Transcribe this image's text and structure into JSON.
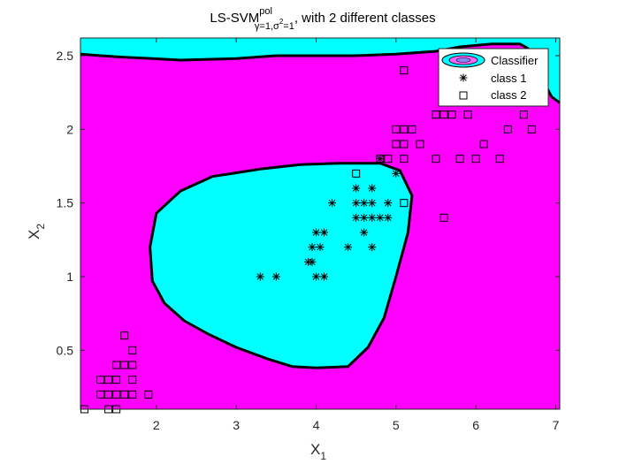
{
  "chart_data": {
    "type": "scatter",
    "title": {
      "main": "LS-SVM",
      "sup": "pol",
      "sub_prefix": "γ=1,σ",
      "sub_sup": "2",
      "sub_suffix": "=1",
      "tail": ", with 2 different classes"
    },
    "xlabel": {
      "base": "X",
      "sub": "1"
    },
    "ylabel": {
      "base": "X",
      "sub": "2"
    },
    "xlim": [
      1.05,
      7.05
    ],
    "ylim": [
      0.1,
      2.62
    ],
    "xticks": [
      2,
      3,
      4,
      5,
      6,
      7
    ],
    "yticks": [
      0.5,
      1,
      1.5,
      2,
      2.5
    ],
    "grid": false,
    "legend_position": "top-right",
    "legend": [
      "Classifier",
      "class 1",
      "class 2"
    ],
    "colors": {
      "class_a_region": "#ff00ff",
      "class_b_region": "#00ffff",
      "boundary": "#000000",
      "marker": "#000000"
    },
    "decision_regions": {
      "center_island": [
        [
          4.0,
          0.38
        ],
        [
          4.4,
          0.39
        ],
        [
          4.65,
          0.52
        ],
        [
          4.85,
          0.72
        ],
        [
          5.0,
          1.0
        ],
        [
          5.15,
          1.3
        ],
        [
          5.2,
          1.55
        ],
        [
          5.05,
          1.72
        ],
        [
          4.8,
          1.77
        ],
        [
          4.3,
          1.77
        ],
        [
          3.8,
          1.76
        ],
        [
          3.3,
          1.73
        ],
        [
          2.7,
          1.68
        ],
        [
          2.3,
          1.58
        ],
        [
          2.0,
          1.43
        ],
        [
          1.92,
          1.2
        ],
        [
          1.95,
          0.97
        ],
        [
          2.1,
          0.82
        ],
        [
          2.35,
          0.7
        ],
        [
          2.65,
          0.61
        ],
        [
          3.0,
          0.52
        ],
        [
          3.4,
          0.44
        ],
        [
          3.7,
          0.39
        ]
      ],
      "top_band": [
        [
          1.05,
          2.62
        ],
        [
          7.05,
          2.62
        ],
        [
          7.05,
          2.18
        ],
        [
          6.95,
          2.22
        ],
        [
          6.85,
          2.32
        ],
        [
          6.75,
          2.45
        ],
        [
          6.65,
          2.55
        ],
        [
          6.55,
          2.58
        ],
        [
          6.2,
          2.58
        ],
        [
          5.8,
          2.56
        ],
        [
          5.5,
          2.53
        ],
        [
          5.0,
          2.51
        ],
        [
          4.5,
          2.5
        ],
        [
          4.0,
          2.5
        ],
        [
          3.5,
          2.5
        ],
        [
          3.0,
          2.48
        ],
        [
          2.3,
          2.47
        ],
        [
          1.95,
          2.48
        ],
        [
          1.6,
          2.49
        ],
        [
          1.3,
          2.5
        ],
        [
          1.05,
          2.51
        ]
      ]
    },
    "series": [
      {
        "name": "class 1",
        "marker": "asterisk",
        "points": [
          [
            3.3,
            1.0
          ],
          [
            3.5,
            1.0
          ],
          [
            3.9,
            1.1
          ],
          [
            3.95,
            1.1
          ],
          [
            3.95,
            1.2
          ],
          [
            4.05,
            1.2
          ],
          [
            4.0,
            1.0
          ],
          [
            4.1,
            1.0
          ],
          [
            4.0,
            1.3
          ],
          [
            4.1,
            1.3
          ],
          [
            4.2,
            1.5
          ],
          [
            4.4,
            1.2
          ],
          [
            4.5,
            1.4
          ],
          [
            4.5,
            1.5
          ],
          [
            4.5,
            1.6
          ],
          [
            4.6,
            1.3
          ],
          [
            4.6,
            1.4
          ],
          [
            4.6,
            1.5
          ],
          [
            4.7,
            1.2
          ],
          [
            4.7,
            1.4
          ],
          [
            4.7,
            1.5
          ],
          [
            4.7,
            1.6
          ],
          [
            4.8,
            1.4
          ],
          [
            4.8,
            1.8
          ],
          [
            4.9,
            1.4
          ],
          [
            4.9,
            1.5
          ],
          [
            5.0,
            1.7
          ]
        ]
      },
      {
        "name": "class 2",
        "marker": "square",
        "points": [
          [
            1.1,
            0.1
          ],
          [
            1.3,
            0.2
          ],
          [
            1.3,
            0.3
          ],
          [
            1.4,
            0.1
          ],
          [
            1.4,
            0.2
          ],
          [
            1.4,
            0.3
          ],
          [
            1.5,
            0.1
          ],
          [
            1.5,
            0.2
          ],
          [
            1.5,
            0.3
          ],
          [
            1.5,
            0.4
          ],
          [
            1.6,
            0.2
          ],
          [
            1.6,
            0.4
          ],
          [
            1.6,
            0.6
          ],
          [
            1.7,
            0.2
          ],
          [
            1.7,
            0.3
          ],
          [
            1.7,
            0.4
          ],
          [
            1.7,
            0.5
          ],
          [
            1.9,
            0.2
          ],
          [
            4.5,
            1.7
          ],
          [
            4.8,
            1.8
          ],
          [
            4.9,
            1.8
          ],
          [
            5.0,
            1.9
          ],
          [
            5.0,
            2.0
          ],
          [
            5.1,
            1.5
          ],
          [
            5.1,
            1.8
          ],
          [
            5.1,
            1.9
          ],
          [
            5.1,
            2.0
          ],
          [
            5.1,
            2.4
          ],
          [
            5.2,
            2.0
          ],
          [
            5.3,
            1.9
          ],
          [
            5.5,
            1.8
          ],
          [
            5.5,
            2.1
          ],
          [
            5.6,
            1.4
          ],
          [
            5.6,
            2.1
          ],
          [
            5.7,
            2.1
          ],
          [
            5.8,
            1.8
          ],
          [
            5.9,
            2.1
          ],
          [
            6.0,
            1.8
          ],
          [
            6.1,
            1.9
          ],
          [
            6.3,
            1.8
          ],
          [
            6.4,
            2.0
          ],
          [
            6.6,
            2.1
          ],
          [
            6.7,
            2.0
          ]
        ]
      }
    ]
  }
}
